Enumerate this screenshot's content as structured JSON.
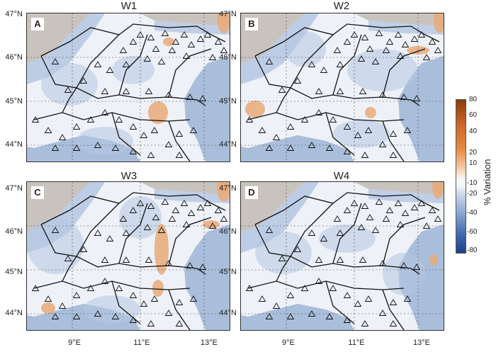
{
  "panels": [
    {
      "id": "A",
      "title": "W1"
    },
    {
      "id": "B",
      "title": "W2"
    },
    {
      "id": "C",
      "title": "W3"
    },
    {
      "id": "D",
      "title": "W4"
    }
  ],
  "axes": {
    "lat_labels": [
      "47°N",
      "46°N",
      "45°N",
      "44°N"
    ],
    "lon_labels": [
      "9°E",
      "11°E",
      "13°E"
    ]
  },
  "colorbar": {
    "title": "% Variation",
    "ticks": [
      "80",
      "60",
      "40",
      "20",
      "10",
      "-10",
      "-20",
      "-40",
      "-60",
      "-80"
    ],
    "colors": {
      "pos_strong": "#8c3d0c",
      "pos_mid": "#e48a44",
      "pos_light": "#f4c9a0",
      "neutral": "#f6f6f8",
      "neg_light": "#cad6ea",
      "neg_mid": "#7f9fcd",
      "neg_strong": "#1f3f86"
    }
  },
  "map_colors": {
    "sea": "#a9bedb",
    "land": "#eef1f7",
    "alps": "#c9c3be",
    "blue_band": "#b4c7e2",
    "warm": "#e9aa78"
  },
  "station_symbol": "triangle-outline"
}
